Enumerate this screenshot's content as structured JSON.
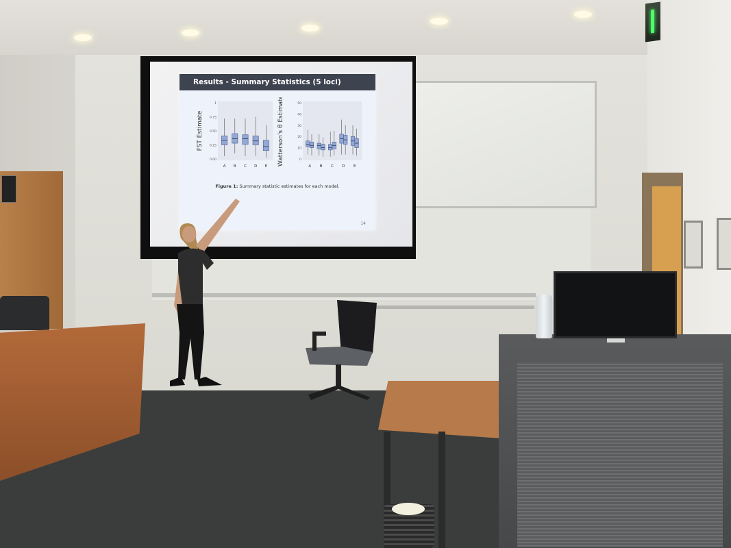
{
  "slide": {
    "title": "Results - Summary Statistics (5 loci)",
    "caption_label": "Figure 1:",
    "caption_text": "Summary statistic estimates for each model.",
    "page_number": "14"
  },
  "chart_data": [
    {
      "type": "box",
      "ylabel": "FST Estimate",
      "categories": [
        "A",
        "B",
        "C",
        "D",
        "E"
      ],
      "yticks": [
        "0.00",
        "0.25",
        "0.50",
        "0.75",
        "1"
      ],
      "ylim": [
        0,
        1
      ],
      "series": [
        {
          "values": [
            {
              "cat": "A",
              "q1": 0.25,
              "median": 0.33,
              "q3": 0.41,
              "whisker_low": 0.05,
              "whisker_high": 0.72
            },
            {
              "cat": "B",
              "q1": 0.28,
              "median": 0.36,
              "q3": 0.45,
              "whisker_low": 0.1,
              "whisker_high": 0.72
            },
            {
              "cat": "C",
              "q1": 0.26,
              "median": 0.36,
              "q3": 0.43,
              "whisker_low": 0.05,
              "whisker_high": 0.72
            },
            {
              "cat": "D",
              "q1": 0.25,
              "median": 0.32,
              "q3": 0.41,
              "whisker_low": 0.05,
              "whisker_high": 0.75
            },
            {
              "cat": "E",
              "q1": 0.15,
              "median": 0.22,
              "q3": 0.33,
              "whisker_low": 0.02,
              "whisker_high": 0.6
            }
          ]
        }
      ]
    },
    {
      "type": "box",
      "ylabel": "Watterson's θ Estimate",
      "categories": [
        "A",
        "B",
        "C",
        "D",
        "E"
      ],
      "yticks": [
        "0",
        "10",
        "20",
        "30",
        "40",
        "50"
      ],
      "ylim": [
        0,
        50
      ],
      "series": [
        {
          "values": [
            {
              "cat": "A",
              "q1": 11,
              "median": 13,
              "q3": 16,
              "whisker_low": 4,
              "whisker_high": 26
            },
            {
              "cat": "B",
              "q1": 9,
              "median": 12,
              "q3": 14,
              "whisker_low": 3,
              "whisker_high": 22
            },
            {
              "cat": "C",
              "q1": 8,
              "median": 10,
              "q3": 13,
              "whisker_low": 2,
              "whisker_high": 24
            },
            {
              "cat": "D",
              "q1": 14,
              "median": 18,
              "q3": 22,
              "whisker_low": 4,
              "whisker_high": 35
            },
            {
              "cat": "E",
              "q1": 12,
              "median": 16,
              "q3": 20,
              "whisker_low": 4,
              "whisker_high": 30
            }
          ]
        },
        {
          "values": [
            {
              "cat": "A",
              "q1": 10,
              "median": 12,
              "q3": 15,
              "whisker_low": 3,
              "whisker_high": 22
            },
            {
              "cat": "B",
              "q1": 8,
              "median": 10,
              "q3": 13,
              "whisker_low": 2,
              "whisker_high": 19
            },
            {
              "cat": "C",
              "q1": 9,
              "median": 12,
              "q3": 15,
              "whisker_low": 3,
              "whisker_high": 25
            },
            {
              "cat": "D",
              "q1": 13,
              "median": 17,
              "q3": 21,
              "whisker_low": 4,
              "whisker_high": 30
            },
            {
              "cat": "E",
              "q1": 10,
              "median": 14,
              "q3": 18,
              "whisker_low": 3,
              "whisker_high": 27
            }
          ]
        }
      ]
    }
  ],
  "colors": {
    "box_fill": "#93a8d4",
    "box_stroke": "#4a5d8f",
    "slide_header": "#3e4350"
  }
}
